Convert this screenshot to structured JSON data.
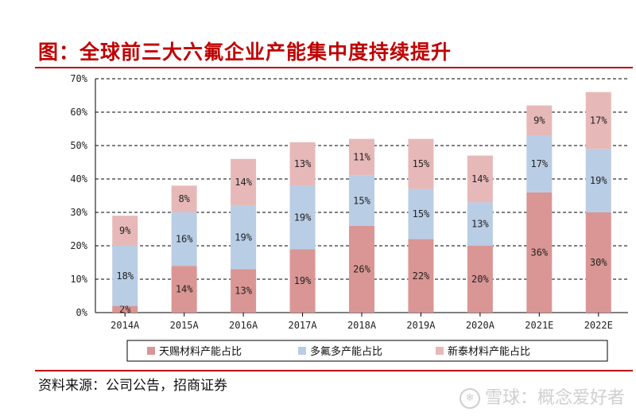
{
  "header": {
    "title": "图：全球前三大六氟企业产能集中度持续提升"
  },
  "footer": {
    "source": "资料来源：公司公告，招商证券",
    "watermark": "雪球：概念爱好者"
  },
  "colors": {
    "tianci": "#d99694",
    "duofuduo": "#b9cde5",
    "xintai": "#e6b9b8",
    "rule": "#c00000"
  },
  "chart_data": {
    "type": "bar",
    "stacked": true,
    "categories": [
      "2014A",
      "2015A",
      "2016A",
      "2017A",
      "2018A",
      "2019A",
      "2020A",
      "2021E",
      "2022E"
    ],
    "series": [
      {
        "name": "天赐材料产能占比",
        "values": [
          2,
          14,
          13,
          19,
          26,
          22,
          20,
          36,
          30
        ],
        "labels": [
          "2%",
          "14%",
          "13%",
          "19%",
          "26%",
          "22%",
          "20%",
          "36%",
          "30%"
        ]
      },
      {
        "name": "多氟多产能占比",
        "values": [
          18,
          16,
          19,
          19,
          15,
          15,
          13,
          17,
          19
        ],
        "labels": [
          "18%",
          "16%",
          "19%",
          "19%",
          "15%",
          "15%",
          "13%",
          "17%",
          "19%"
        ]
      },
      {
        "name": "新泰材料产能占比",
        "values": [
          9,
          8,
          14,
          13,
          11,
          15,
          14,
          9,
          17
        ],
        "labels": [
          "9%",
          "8%",
          "14%",
          "13%",
          "11%",
          "15%",
          "14%",
          "9%",
          "17%"
        ]
      }
    ],
    "yticks": [
      "0%",
      "10%",
      "20%",
      "30%",
      "40%",
      "50%",
      "60%",
      "70%"
    ],
    "ylim": [
      0,
      70
    ],
    "grid": true,
    "legend": "bottom"
  }
}
